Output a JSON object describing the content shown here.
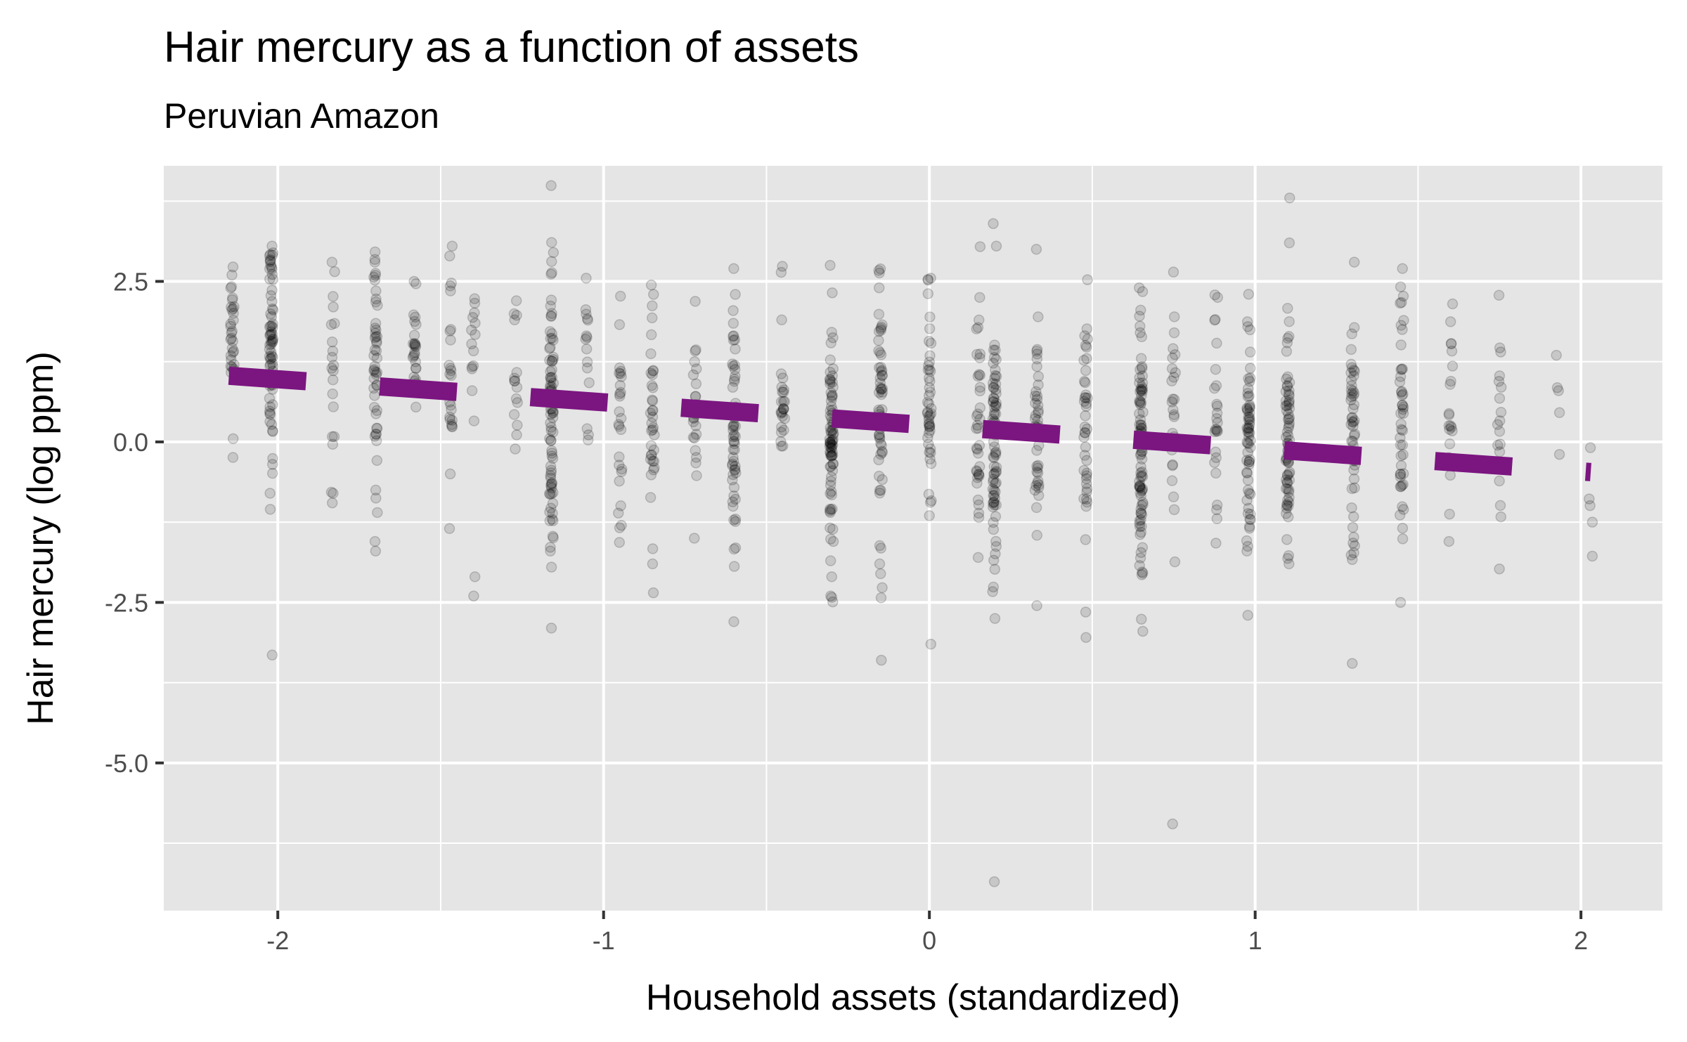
{
  "chart_data": {
    "type": "scatter",
    "title": "Hair mercury as a function of assets",
    "subtitle": "Peruvian Amazon",
    "xlabel": "Household assets (standardized)",
    "ylabel": "Hair mercury (log ppm)",
    "xlim": [
      -2.35,
      2.25
    ],
    "ylim": [
      -7.3,
      4.3
    ],
    "x_ticks": [
      -2,
      -1,
      0,
      1,
      2
    ],
    "x_tick_labels": [
      "-2",
      "-1",
      "0",
      "1",
      "2"
    ],
    "y_ticks": [
      -5,
      -2.5,
      0,
      2.5
    ],
    "y_tick_labels": [
      "-5.0",
      "-2.5",
      "0.0",
      "2.5"
    ],
    "grid": true,
    "point_color": "#000000",
    "point_alpha": 0.13,
    "panel_background": "#e5e5e5",
    "gridline_color": "#ffffff",
    "fit_line": {
      "color": "#7b1580",
      "style": "dashed",
      "x": [
        -2.15,
        2.03
      ],
      "y": [
        1.03,
        -0.47
      ]
    },
    "point_columns": [
      {
        "x": -2.14,
        "center": 1.5,
        "spread": 0.65,
        "n": 30,
        "extra": [
          2.6,
          0.05
        ]
      },
      {
        "x": -2.02,
        "center": 1.6,
        "spread": 0.9,
        "n": 70,
        "extra": [
          3.05,
          2.9,
          -0.35,
          -0.8,
          -1.05,
          -3.32
        ]
      },
      {
        "x": -1.83,
        "center": 1.1,
        "spread": 0.8,
        "n": 18,
        "extra": [
          2.8,
          -0.8,
          -0.95
        ]
      },
      {
        "x": -1.7,
        "center": 1.2,
        "spread": 0.9,
        "n": 45,
        "extra": [
          2.8,
          -0.75,
          -1.1,
          -1.55,
          -1.7
        ]
      },
      {
        "x": -1.58,
        "center": 1.5,
        "spread": 0.5,
        "n": 25,
        "extra": [
          2.5
        ]
      },
      {
        "x": -1.47,
        "center": 1.2,
        "spread": 0.9,
        "n": 22,
        "extra": [
          3.05,
          -1.35
        ]
      },
      {
        "x": -1.4,
        "center": 1.3,
        "spread": 0.7,
        "n": 14,
        "extra": [
          -2.1,
          -2.4
        ]
      },
      {
        "x": -1.27,
        "center": 1.0,
        "spread": 0.7,
        "n": 14,
        "extra": [
          1.9
        ]
      },
      {
        "x": -1.16,
        "center": 0.5,
        "spread": 1.0,
        "n": 80,
        "extra": [
          2.95,
          -1.7,
          -1.95,
          -2.9
        ]
      },
      {
        "x": -1.05,
        "center": 1.3,
        "spread": 0.8,
        "n": 14,
        "extra": [
          2.55
        ]
      },
      {
        "x": -0.95,
        "center": 0.5,
        "spread": 0.9,
        "n": 25,
        "extra": [
          -1.3
        ]
      },
      {
        "x": -0.85,
        "center": 0.3,
        "spread": 0.9,
        "n": 35,
        "extra": [
          -1.9,
          -2.35
        ]
      },
      {
        "x": -0.72,
        "center": 0.5,
        "spread": 0.8,
        "n": 25,
        "extra": [
          -1.5
        ]
      },
      {
        "x": -0.6,
        "center": 0.2,
        "spread": 1.0,
        "n": 55,
        "extra": [
          2.7,
          -1.65,
          -2.8
        ]
      },
      {
        "x": -0.45,
        "center": 0.6,
        "spread": 0.7,
        "n": 25,
        "extra": [
          1.9
        ]
      },
      {
        "x": -0.3,
        "center": 0.0,
        "spread": 1.0,
        "n": 80,
        "extra": [
          2.75,
          -2.1,
          -2.4
        ]
      },
      {
        "x": -0.15,
        "center": 0.4,
        "spread": 1.0,
        "n": 60,
        "extra": [
          2.4,
          -1.9,
          -3.4
        ]
      },
      {
        "x": 0.0,
        "center": 0.4,
        "spread": 1.0,
        "n": 45,
        "extra": [
          2.55,
          -3.15
        ]
      },
      {
        "x": 0.15,
        "center": 0.3,
        "spread": 0.9,
        "n": 35,
        "extra": [
          2.25,
          -1.8
        ]
      },
      {
        "x": 0.2,
        "center": -0.3,
        "spread": 1.0,
        "n": 80,
        "extra": [
          3.4,
          3.05,
          -2.75,
          -6.85
        ]
      },
      {
        "x": 0.33,
        "center": 0.2,
        "spread": 0.9,
        "n": 40,
        "extra": [
          3.0,
          -2.55
        ]
      },
      {
        "x": 0.48,
        "center": -0.1,
        "spread": 0.9,
        "n": 40,
        "extra": [
          -2.65
        ]
      },
      {
        "x": 0.65,
        "center": -0.1,
        "spread": 1.0,
        "n": 90,
        "extra": [
          2.4,
          -2.95
        ]
      },
      {
        "x": 0.75,
        "center": 0.2,
        "spread": 0.9,
        "n": 25,
        "extra": [
          -5.95
        ]
      },
      {
        "x": 0.88,
        "center": 0.5,
        "spread": 0.8,
        "n": 25,
        "extra": [
          2.25
        ]
      },
      {
        "x": 0.98,
        "center": -0.1,
        "spread": 0.9,
        "n": 60,
        "extra": [
          2.3,
          -1.7,
          -2.7
        ]
      },
      {
        "x": 1.1,
        "center": 0.0,
        "spread": 0.9,
        "n": 70,
        "extra": [
          3.8,
          3.1,
          -1.9
        ]
      },
      {
        "x": 1.3,
        "center": 0.2,
        "spread": 1.0,
        "n": 50,
        "extra": [
          2.8,
          -3.45
        ]
      },
      {
        "x": 1.45,
        "center": 0.2,
        "spread": 1.0,
        "n": 45,
        "extra": [
          2.7,
          -2.5
        ]
      },
      {
        "x": 1.6,
        "center": 0.3,
        "spread": 1.0,
        "n": 18,
        "extra": [
          2.15,
          -1.55
        ]
      },
      {
        "x": 1.75,
        "center": 0.0,
        "spread": 0.9,
        "n": 18,
        "extra": [
          1.4
        ]
      },
      {
        "x": 1.93,
        "center": 0.6,
        "spread": 0.5,
        "n": 4,
        "extra": [
          1.35
        ]
      },
      {
        "x": 2.03,
        "center": -0.3,
        "spread": 0.6,
        "n": 4,
        "extra": [
          -1.25
        ]
      }
    ]
  }
}
